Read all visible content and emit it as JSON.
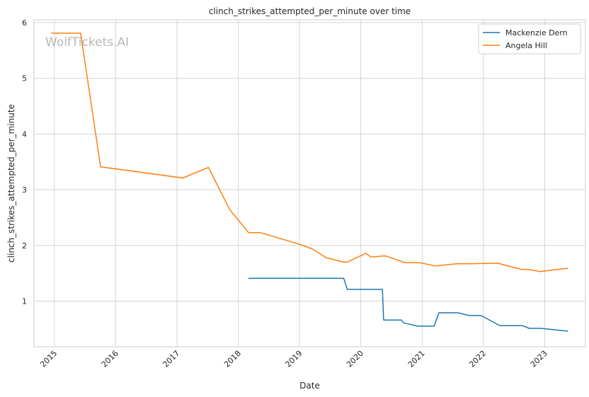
{
  "chart_data": {
    "type": "line",
    "title": "clinch_strikes_attempted_per_minute over time",
    "xlabel": "Date",
    "ylabel": "clinch_strikes_attempted_per_minute",
    "watermark": "WolfTickets.AI",
    "xlim": [
      "2014-09-01",
      "2023-09-01"
    ],
    "ylim": [
      0.18,
      6.05
    ],
    "xticks": [
      "2015",
      "2016",
      "2017",
      "2018",
      "2019",
      "2020",
      "2021",
      "2022",
      "2023"
    ],
    "yticks": [
      1,
      2,
      3,
      4,
      5,
      6
    ],
    "grid": true,
    "legend_position": "top-right",
    "series": [
      {
        "name": "Mackenzie Dern",
        "color": "#1f77b4",
        "points": [
          [
            "2018-03-03",
            1.41
          ],
          [
            "2018-05-12",
            1.41
          ],
          [
            "2019-09-21",
            1.41
          ],
          [
            "2019-10-12",
            1.21
          ],
          [
            "2020-05-09",
            1.21
          ],
          [
            "2020-05-16",
            0.66
          ],
          [
            "2020-08-29",
            0.66
          ],
          [
            "2020-09-12",
            0.61
          ],
          [
            "2020-12-05",
            0.55
          ],
          [
            "2021-03-13",
            0.55
          ],
          [
            "2021-04-10",
            0.79
          ],
          [
            "2021-08-01",
            0.79
          ],
          [
            "2021-10-09",
            0.74
          ],
          [
            "2021-12-18",
            0.74
          ],
          [
            "2022-04-09",
            0.56
          ],
          [
            "2022-08-20",
            0.56
          ],
          [
            "2022-10-01",
            0.51
          ],
          [
            "2022-12-10",
            0.51
          ],
          [
            "2023-05-20",
            0.46
          ]
        ]
      },
      {
        "name": "Angela Hill",
        "color": "#ff7f0e",
        "points": [
          [
            "2014-12-13",
            5.81
          ],
          [
            "2015-06-06",
            5.81
          ],
          [
            "2015-10-03",
            3.41
          ],
          [
            "2017-02-04",
            3.21
          ],
          [
            "2017-07-07",
            3.4
          ],
          [
            "2017-11-11",
            2.64
          ],
          [
            "2018-03-03",
            2.23
          ],
          [
            "2018-05-12",
            2.23
          ],
          [
            "2019-01-01",
            2.02
          ],
          [
            "2019-03-16",
            1.94
          ],
          [
            "2019-06-08",
            1.78
          ],
          [
            "2019-09-21",
            1.7
          ],
          [
            "2019-10-12",
            1.7
          ],
          [
            "2020-02-01",
            1.86
          ],
          [
            "2020-02-29",
            1.79
          ],
          [
            "2020-05-09",
            1.81
          ],
          [
            "2020-05-30",
            1.81
          ],
          [
            "2020-09-19",
            1.69
          ],
          [
            "2020-12-19",
            1.69
          ],
          [
            "2021-03-20",
            1.63
          ],
          [
            "2021-07-24",
            1.67
          ],
          [
            "2021-10-09",
            1.67
          ],
          [
            "2022-03-26",
            1.68
          ],
          [
            "2022-08-13",
            1.57
          ],
          [
            "2022-09-24",
            1.57
          ],
          [
            "2022-12-03",
            1.53
          ],
          [
            "2023-05-20",
            1.59
          ]
        ]
      }
    ]
  }
}
